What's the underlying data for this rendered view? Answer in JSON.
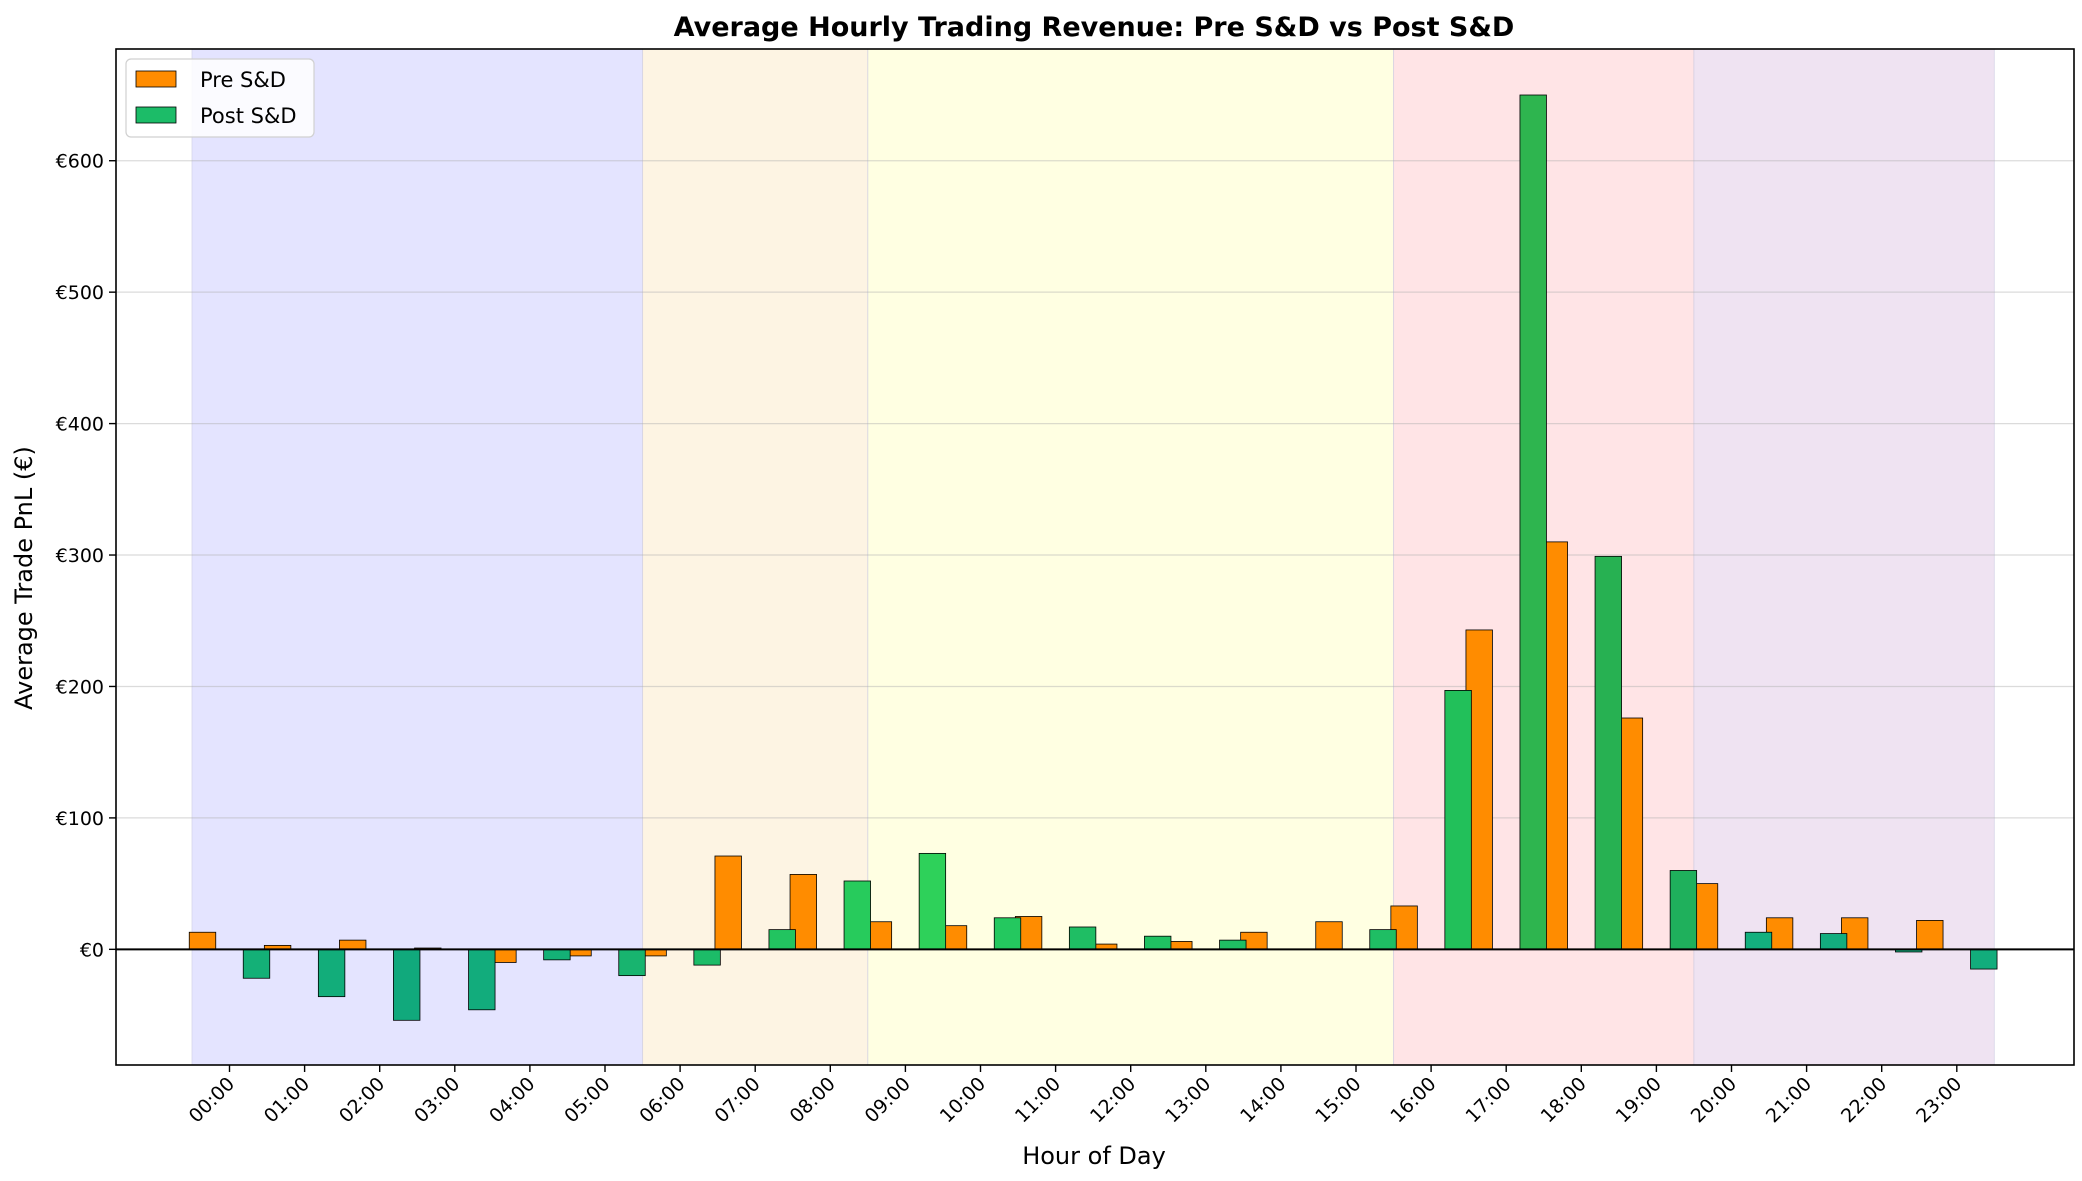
{
  "chart_data": {
    "type": "bar",
    "title": "Average Hourly Trading Revenue: Pre S&D vs Post S&D",
    "xlabel": "Hour of Day",
    "ylabel": "Average Trade PnL (€)",
    "ylim": [
      -88,
      685
    ],
    "yticks": [
      0,
      100,
      200,
      300,
      400,
      500,
      600
    ],
    "ytick_labels": [
      "€0",
      "€100",
      "€200",
      "€300",
      "€400",
      "€500",
      "€600"
    ],
    "grid": "horizontal",
    "legend_position": "top-left",
    "categories": [
      "00:00",
      "01:00",
      "02:00",
      "03:00",
      "04:00",
      "05:00",
      "06:00",
      "07:00",
      "08:00",
      "09:00",
      "10:00",
      "11:00",
      "12:00",
      "13:00",
      "14:00",
      "15:00",
      "16:00",
      "17:00",
      "18:00",
      "19:00",
      "20:00",
      "21:00",
      "22:00",
      "23:00"
    ],
    "series": [
      {
        "name": "Pre S&D",
        "color": "#ff8c00",
        "values": [
          13,
          3,
          7,
          1,
          -10,
          -5,
          -5,
          71,
          57,
          21,
          18,
          25,
          4,
          6,
          13,
          21,
          33,
          243,
          310,
          176,
          50,
          24,
          24,
          22
        ]
      },
      {
        "name": "Post S&D",
        "color_range": [
          "#10b981",
          "#22c55e"
        ],
        "colors": [
          "#14b077",
          "#12ad7a",
          "#11a97c",
          "#12ac7c",
          "#14b176",
          "#18b46f",
          "#1cbc68",
          "#22c460",
          "#27cb5c",
          "#2ed15a",
          "#24c85f",
          "#1fbe64",
          "#20c162",
          "#1fbf63",
          "#1fbe64",
          "#1fbe64",
          "#22c05a",
          "#2eb54f",
          "#27b152",
          "#1fb05c",
          "#13b07e",
          "#13ad7e",
          "#13ae7e",
          "#12ad7c"
        ],
        "values": [
          -22,
          -36,
          -54,
          -46,
          -8,
          -20,
          -12,
          15,
          52,
          73,
          24,
          17,
          10,
          7,
          0,
          15,
          197,
          650,
          299,
          60,
          13,
          12,
          -2,
          -15
        ]
      }
    ],
    "background_bands": [
      {
        "from_index": 0,
        "to_index": 5,
        "color": "#e4e4ff"
      },
      {
        "from_index": 6,
        "to_index": 8,
        "color": "#fdf4e3"
      },
      {
        "from_index": 9,
        "to_index": 15,
        "color": "#ffffe2"
      },
      {
        "from_index": 16,
        "to_index": 19,
        "color": "#ffe4e6"
      },
      {
        "from_index": 20,
        "to_index": 23,
        "color": "#efe3f2"
      }
    ]
  }
}
